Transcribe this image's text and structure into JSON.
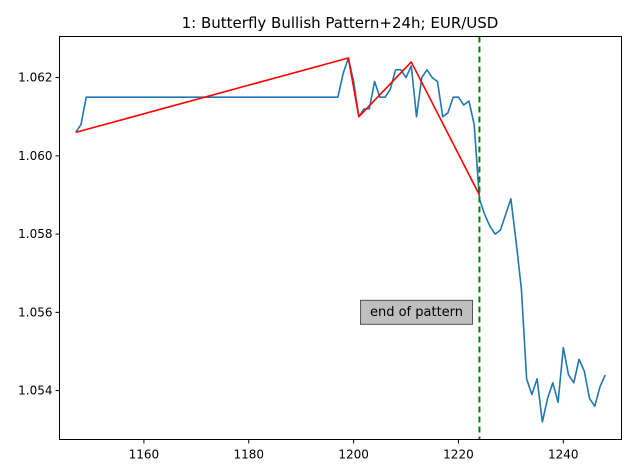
{
  "chart_data": {
    "type": "line",
    "title": "1: Butterfly Bullish Pattern+24h; EUR/USD",
    "xlabel": "",
    "ylabel": "",
    "xlim": [
      1143.9,
      1251.1
    ],
    "ylim": [
      1.05275,
      1.06305
    ],
    "x_ticks": [
      1160,
      1180,
      1200,
      1220,
      1240
    ],
    "y_ticks": [
      1.054,
      1.056,
      1.058,
      1.06,
      1.062
    ],
    "x_tick_labels": [
      "1160",
      "1180",
      "1200",
      "1220",
      "1240"
    ],
    "y_tick_labels": [
      "1.054",
      "1.056",
      "1.058",
      "1.060",
      "1.062"
    ],
    "grid": false,
    "series": [
      {
        "color": "#1f77b4",
        "x": [
          1147,
          1148,
          1149,
          1150,
          1160,
          1170,
          1180,
          1190,
          1197,
          1198,
          1199,
          1200,
          1201,
          1202,
          1203,
          1204,
          1205,
          1206,
          1207,
          1208,
          1209,
          1210,
          1211,
          1212,
          1213,
          1214,
          1215,
          1216,
          1217,
          1218,
          1219,
          1220,
          1221,
          1222,
          1223,
          1224,
          1225,
          1226,
          1227,
          1228,
          1229,
          1230,
          1231,
          1232,
          1233,
          1234,
          1235,
          1236,
          1237,
          1238,
          1239,
          1240,
          1241,
          1242,
          1243,
          1244,
          1245,
          1246,
          1247,
          1248
        ],
        "y": [
          1.0606,
          1.0608,
          1.0615,
          1.0615,
          1.0615,
          1.0615,
          1.0615,
          1.0615,
          1.0615,
          1.0621,
          1.0625,
          1.0619,
          1.061,
          1.0612,
          1.0612,
          1.0619,
          1.0615,
          1.0615,
          1.0617,
          1.0622,
          1.0622,
          1.062,
          1.0623,
          1.061,
          1.062,
          1.0622,
          1.062,
          1.0619,
          1.061,
          1.0611,
          1.0615,
          1.0615,
          1.0613,
          1.0614,
          1.0608,
          1.0589,
          1.0585,
          1.0582,
          1.058,
          1.0581,
          1.0585,
          1.0589,
          1.0578,
          1.0566,
          1.0543,
          1.0539,
          1.0543,
          1.0532,
          1.0538,
          1.0542,
          1.0537,
          1.0551,
          1.0544,
          1.0542,
          1.0548,
          1.0545,
          1.0538,
          1.0536,
          1.0541,
          1.0544
        ]
      },
      {
        "color": "#ff0000",
        "x": [
          1147,
          1199,
          1201,
          1211,
          1224
        ],
        "y": [
          1.0606,
          1.0625,
          1.061,
          1.0624,
          1.059
        ]
      }
    ],
    "vline": {
      "x": 1224,
      "color": "#008000",
      "style": "dashed"
    },
    "annotation": {
      "text": "end of pattern",
      "x": 1212,
      "y": 1.056
    }
  }
}
